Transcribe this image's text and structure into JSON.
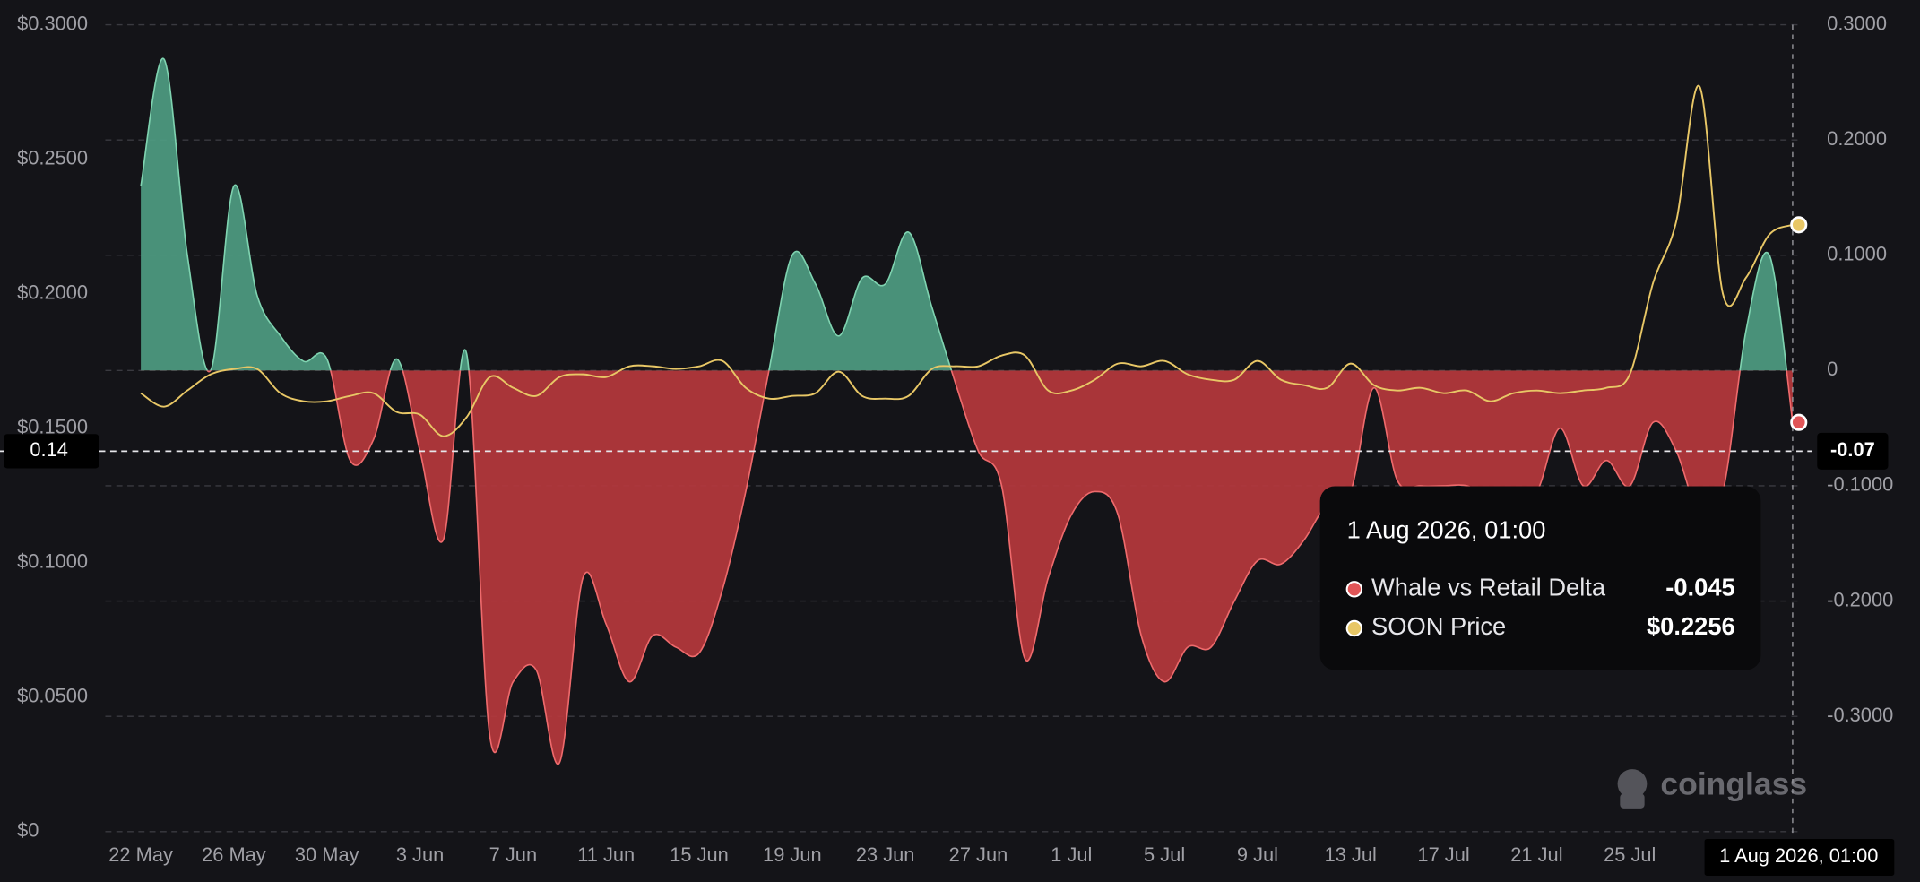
{
  "chart_data": {
    "type": "area-line",
    "categories": [
      "22 May",
      null,
      null,
      null,
      "26 May",
      null,
      null,
      null,
      "30 May",
      null,
      null,
      null,
      "3 Jun",
      null,
      null,
      null,
      "7 Jun",
      null,
      null,
      null,
      "11 Jun",
      null,
      null,
      null,
      "15 Jun",
      null,
      null,
      null,
      "19 Jun",
      null,
      null,
      null,
      "23 Jun",
      null,
      null,
      null,
      "27 Jun",
      null,
      null,
      null,
      "1 Jul",
      null,
      null,
      null,
      "5 Jul",
      null,
      null,
      null,
      "9 Jul",
      null,
      null,
      null,
      "13 Jul",
      null,
      null,
      null,
      "17 Jul",
      null,
      null,
      null,
      "21 Jul",
      null,
      null,
      null,
      "25 Jul",
      null,
      null,
      null,
      null,
      null,
      null,
      null
    ],
    "series": [
      {
        "name": "Whale vs Retail Delta",
        "axis": "y2",
        "color": "#e05557",
        "color_positive": "#4f9f84",
        "color_negative": "#b9393d",
        "values": [
          0.16,
          0.27,
          0.1,
          0.0,
          0.16,
          0.065,
          0.03,
          0.008,
          0.01,
          -0.078,
          -0.06,
          0.01,
          -0.07,
          -0.147,
          0.015,
          -0.317,
          -0.27,
          -0.26,
          -0.34,
          -0.18,
          -0.22,
          -0.27,
          -0.23,
          -0.24,
          -0.245,
          -0.19,
          -0.105,
          0.0,
          0.1,
          0.075,
          0.03,
          0.08,
          0.075,
          0.12,
          0.055,
          -0.01,
          -0.07,
          -0.1,
          -0.25,
          -0.18,
          -0.125,
          -0.105,
          -0.125,
          -0.23,
          -0.27,
          -0.24,
          -0.24,
          -0.2,
          -0.165,
          -0.168,
          -0.147,
          -0.115,
          -0.105,
          -0.015,
          -0.095,
          -0.1,
          -0.1,
          -0.1,
          -0.11,
          -0.105,
          -0.105,
          -0.05,
          -0.1,
          -0.078,
          -0.1,
          -0.045,
          -0.07,
          -0.125,
          -0.105,
          0.035,
          0.1,
          -0.045
        ]
      },
      {
        "name": "SOON Price",
        "color": "#e8c766",
        "values": [
          0.163,
          0.158,
          0.164,
          0.17,
          0.172,
          0.172,
          0.163,
          0.16,
          0.16,
          0.162,
          0.163,
          0.156,
          0.155,
          0.147,
          0.154,
          0.169,
          0.165,
          0.162,
          0.169,
          0.17,
          0.169,
          0.173,
          0.173,
          0.172,
          0.173,
          0.175,
          0.165,
          0.161,
          0.162,
          0.163,
          0.171,
          0.162,
          0.161,
          0.162,
          0.172,
          0.173,
          0.173,
          0.177,
          0.177,
          0.164,
          0.164,
          0.168,
          0.174,
          0.173,
          0.175,
          0.17,
          0.168,
          0.168,
          0.175,
          0.168,
          0.166,
          0.165,
          0.174,
          0.166,
          0.164,
          0.165,
          0.163,
          0.164,
          0.16,
          0.163,
          0.164,
          0.163,
          0.164,
          0.165,
          0.17,
          0.204,
          0.227,
          0.277,
          0.2,
          0.206,
          0.222,
          0.2256
        ]
      }
    ],
    "ylim": [
      0,
      0.3
    ],
    "yticks": [
      {
        "value": 0,
        "label": "$0"
      },
      {
        "value": 0.05,
        "label": "$0.0500"
      },
      {
        "value": 0.1,
        "label": "$0.1000"
      },
      {
        "value": 0.15,
        "label": "$0.1500"
      },
      {
        "value": 0.2,
        "label": "$0.2000"
      },
      {
        "value": 0.25,
        "label": "$0.2500"
      },
      {
        "value": 0.3,
        "label": "$0.3000"
      }
    ],
    "y2lim": [
      -0.4,
      0.3
    ],
    "y2ticks": [
      {
        "value": -0.3,
        "label": "-0.3000"
      },
      {
        "value": -0.2,
        "label": "-0.2000"
      },
      {
        "value": -0.1,
        "label": "-0.1000"
      },
      0,
      {
        "value": 0.1,
        "label": "0.1000"
      },
      {
        "value": 0.2,
        "label": "0.2000"
      },
      {
        "value": 0.3,
        "label": "0.3000"
      }
    ],
    "grid": true,
    "crosshair": {
      "x_label": "1 Aug 2026, 01:00",
      "y": {
        "value": 0.14,
        "label": "0.14"
      },
      "y2": {
        "value": -0.07,
        "label": "-0.07"
      }
    },
    "tooltip": {
      "values": [
        "-0.045",
        "$0.2256"
      ]
    },
    "watermark": "coinglass"
  }
}
